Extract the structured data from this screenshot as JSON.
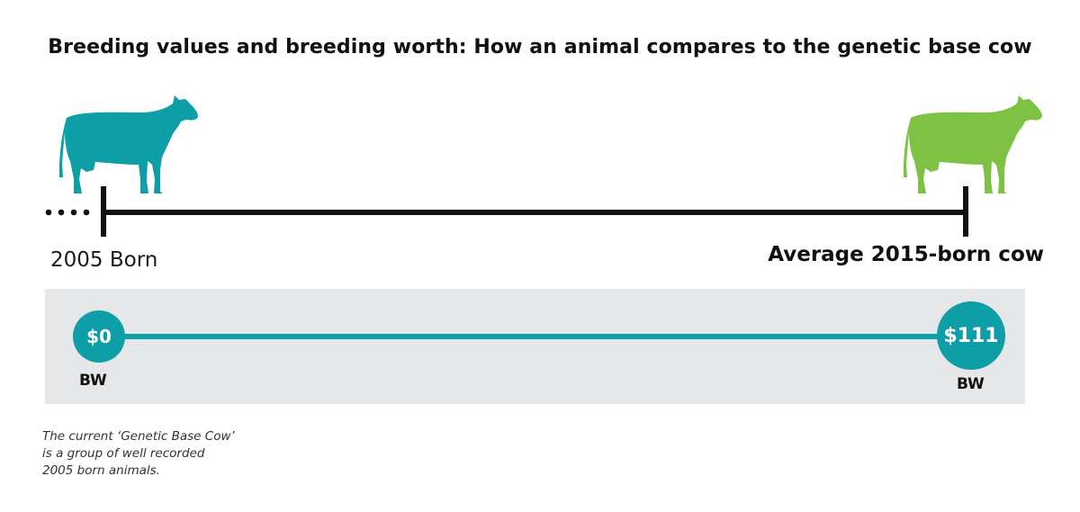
{
  "title": "Breeding values and breeding worth: How an animal compares to the genetic base cow",
  "colors": {
    "teal": "#0e9ea8",
    "green": "#7dc242",
    "timeline": "#111111",
    "panel": "#e6e7e8"
  },
  "icons": {
    "start_cow": "cow-silhouette-icon",
    "end_cow": "cow-silhouette-icon"
  },
  "timeline": {
    "start_label": "2005 Born",
    "end_label": "Average 2015-born cow"
  },
  "breeding_worth": {
    "start": {
      "value": "$0",
      "caption": "BW"
    },
    "end": {
      "value": "$111",
      "caption": "BW"
    }
  },
  "footnote": [
    "The current ‘Genetic Base Cow’",
    "is a group of well recorded",
    "2005 born animals."
  ]
}
